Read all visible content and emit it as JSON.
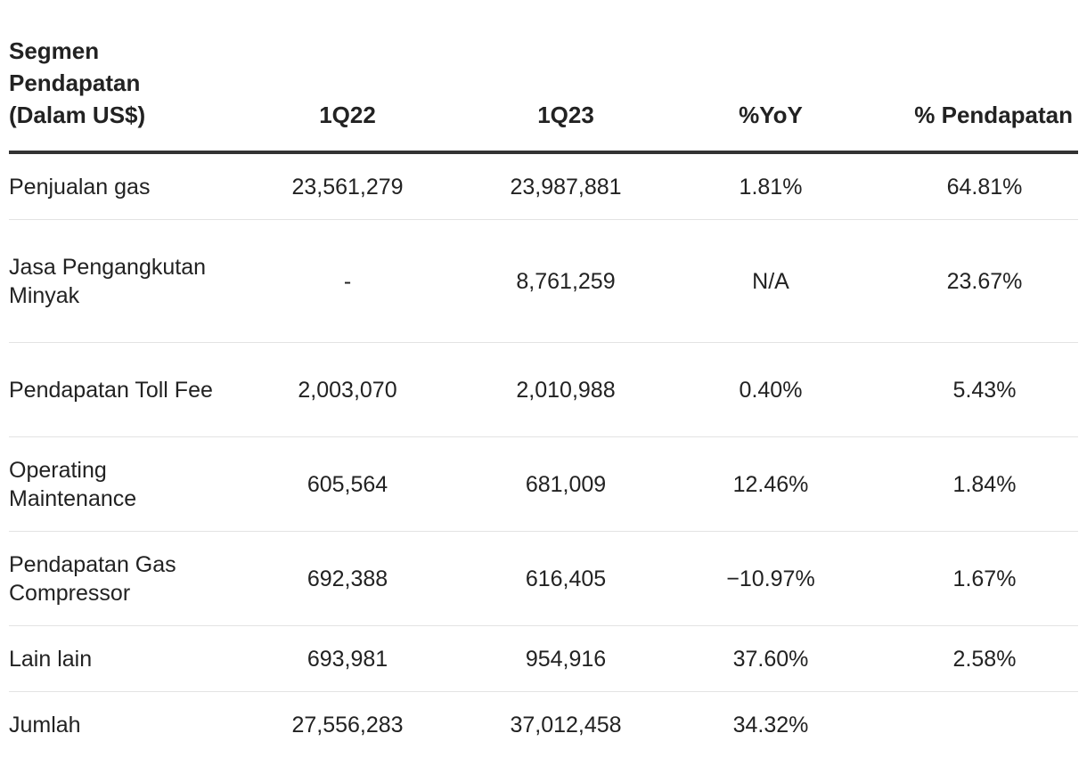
{
  "table": {
    "headers": [
      "Segmen Pendapatan (Dalam US$)",
      "1Q22",
      "1Q23",
      "%YoY",
      "% Pendapatan"
    ],
    "rows": [
      [
        "Penjualan gas",
        "23,561,279",
        "23,987,881",
        "1.81%",
        "64.81%"
      ],
      [
        "Jasa Pengangkutan Minyak",
        "-",
        "8,761,259",
        "N/A",
        "23.67%"
      ],
      [
        "Pendapatan Toll Fee",
        "2,003,070",
        "2,010,988",
        "0.40%",
        "5.43%"
      ],
      [
        "Operating Maintenance",
        "605,564",
        "681,009",
        "12.46%",
        "1.84%"
      ],
      [
        "Pendapatan Gas Compressor",
        "692,388",
        "616,405",
        "−10.97%",
        "1.67%"
      ],
      [
        "Lain lain",
        "693,981",
        "954,916",
        "37.60%",
        "2.58%"
      ],
      [
        "Jumlah",
        "27,556,283",
        "37,012,458",
        "34.32%",
        ""
      ]
    ]
  }
}
